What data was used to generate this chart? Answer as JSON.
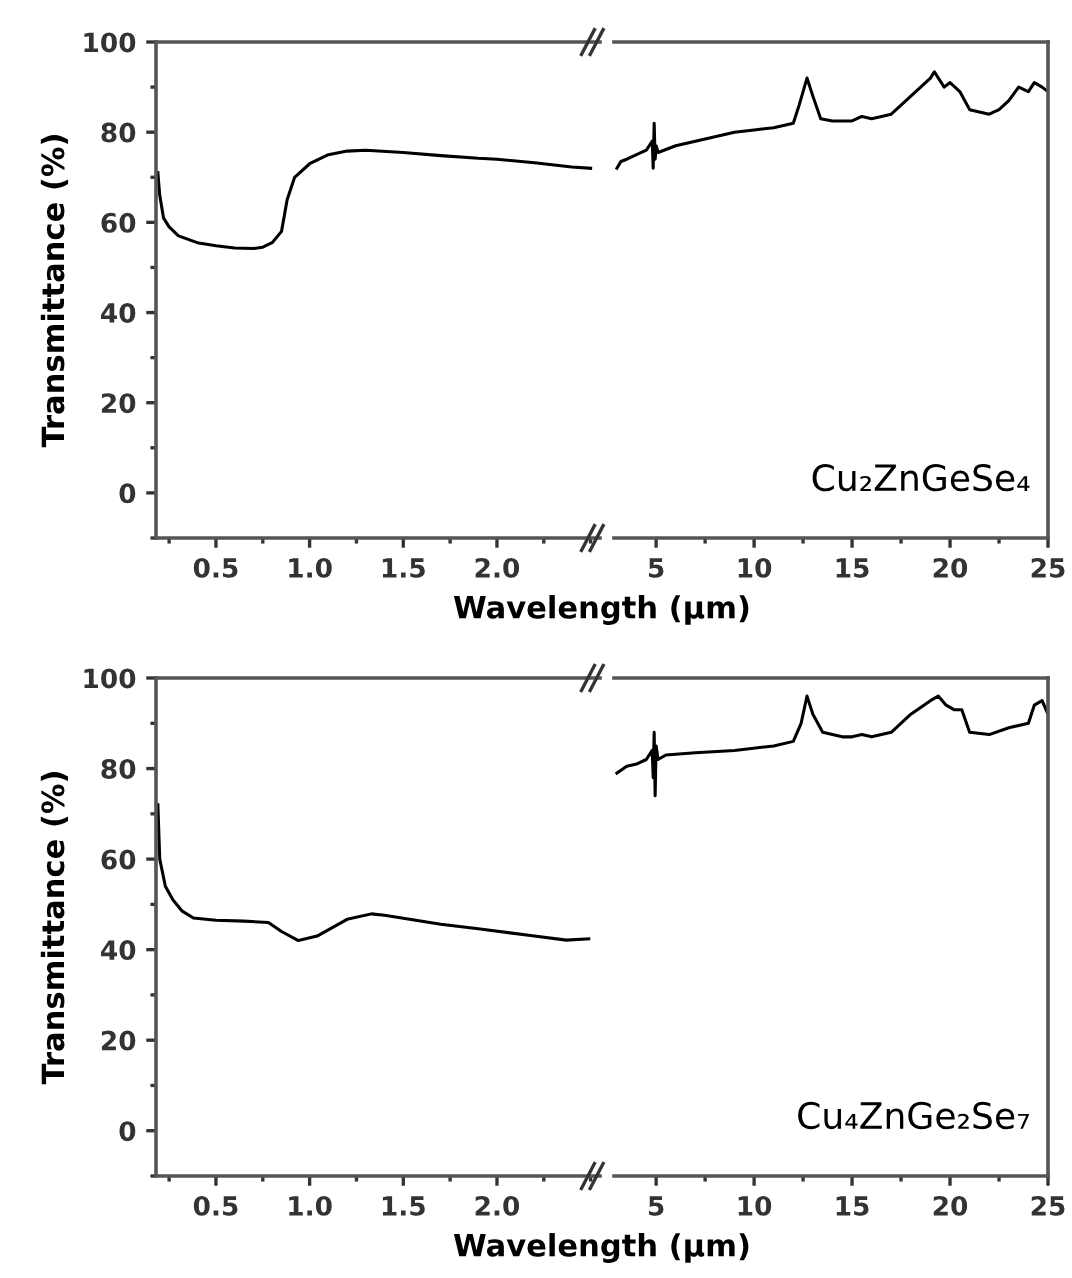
{
  "chart_data": [
    {
      "type": "line",
      "xlabel": "Wavelength (µm)",
      "ylabel": "Transmittance (%)",
      "xlim": [
        0.18,
        2.55
      ],
      "ylim": [
        -10,
        100
      ],
      "xticks": [
        {
          "value": 0.5,
          "label": "0.5"
        },
        {
          "value": 1.0,
          "label": "1.0"
        },
        {
          "value": 1.5,
          "label": "1.5"
        },
        {
          "value": 2.0,
          "label": "2.0"
        }
      ],
      "yticks": [
        0,
        20,
        40,
        60,
        80,
        100
      ],
      "grid": false,
      "legend": false,
      "series": [
        {
          "color": "#000000",
          "x": [
            0.19,
            0.2,
            0.22,
            0.25,
            0.3,
            0.4,
            0.5,
            0.6,
            0.7,
            0.75,
            0.8,
            0.85,
            0.88,
            0.92,
            1.0,
            1.1,
            1.2,
            1.3,
            1.5,
            1.7,
            1.9,
            2.0,
            2.2,
            2.4,
            2.5
          ],
          "values": [
            71,
            66,
            61,
            59,
            57,
            55.5,
            54.8,
            54.3,
            54.2,
            54.5,
            55.5,
            58,
            65,
            70,
            73,
            75,
            75.8,
            76,
            75.5,
            74.8,
            74.2,
            74,
            73.2,
            72.3,
            72
          ]
        }
      ]
    },
    {
      "type": "line",
      "xlim": [
        2.85,
        25
      ],
      "ylim": [
        -10,
        100
      ],
      "xticks": [
        5,
        10,
        15,
        20,
        25
      ],
      "yticks": [
        0,
        20,
        40,
        60,
        80,
        100
      ],
      "tick_labels": "x",
      "grid": false,
      "legend": false,
      "annotations": [
        "Cu₂ZnGeSe₄"
      ],
      "series": [
        {
          "color": "#000000",
          "x": [
            3.0,
            3.2,
            3.5,
            4.0,
            4.5,
            4.8,
            4.85,
            4.9,
            4.95,
            5.0,
            5.1,
            6,
            7,
            8,
            9,
            10,
            11,
            12,
            12.3,
            12.7,
            13.0,
            13.4,
            14,
            15,
            15.5,
            16,
            17,
            18,
            19,
            19.2,
            19.7,
            20,
            20.5,
            21,
            22,
            22.5,
            23,
            23.5,
            24,
            24.3,
            24.7,
            25
          ],
          "values": [
            72,
            73.5,
            74,
            75,
            76,
            78,
            72,
            82,
            74,
            77,
            75.5,
            77,
            78,
            79,
            80,
            80.5,
            81,
            82,
            86,
            92,
            88,
            83,
            82.5,
            82.5,
            83.5,
            83,
            84,
            88,
            92,
            93.4,
            90,
            91,
            89,
            85,
            84,
            85,
            87,
            90,
            89,
            91,
            90,
            89
          ]
        }
      ]
    },
    {
      "type": "line",
      "xlabel": "Wavelength (µm)",
      "ylabel": "Transmittance (%)",
      "xlim": [
        0.18,
        2.55
      ],
      "ylim": [
        -10,
        100
      ],
      "xticks": [
        {
          "value": 0.5,
          "label": "0.5"
        },
        {
          "value": 1.0,
          "label": "1.0"
        },
        {
          "value": 1.5,
          "label": "1.5"
        },
        {
          "value": 2.0,
          "label": "2.0"
        }
      ],
      "yticks": [
        0,
        20,
        40,
        60,
        80,
        100
      ],
      "grid": false,
      "legend": false,
      "series": [
        {
          "color": "#000000",
          "x": [
            0.19,
            0.2,
            0.23,
            0.27,
            0.32,
            0.38,
            0.5,
            0.65,
            0.78,
            0.85,
            0.94,
            1.04,
            1.2,
            1.33,
            1.4,
            1.7,
            1.9,
            2.2,
            2.37,
            2.49
          ],
          "values": [
            72,
            60,
            54,
            51,
            48.5,
            47,
            46.5,
            46.3,
            46,
            44,
            42,
            43,
            46.7,
            47.9,
            47.6,
            45.6,
            44.6,
            43,
            42.1,
            42.4
          ]
        }
      ]
    },
    {
      "type": "line",
      "xlim": [
        2.85,
        25
      ],
      "ylim": [
        -10,
        100
      ],
      "xticks": [
        5,
        10,
        15,
        20,
        25
      ],
      "yticks": [
        0,
        20,
        40,
        60,
        80,
        100
      ],
      "tick_labels": "x",
      "grid": false,
      "legend": false,
      "annotations": [
        "Cu₄ZnGe₂Se₇"
      ],
      "series": [
        {
          "color": "#000000",
          "x": [
            3.0,
            3.5,
            4.0,
            4.5,
            4.8,
            4.85,
            4.9,
            4.95,
            5.0,
            5.1,
            5.5,
            7,
            9,
            11,
            12,
            12.4,
            12.7,
            13.0,
            13.5,
            14.5,
            15,
            15.5,
            16,
            17,
            18,
            19,
            19.4,
            19.8,
            20.2,
            20.6,
            21,
            22,
            23,
            24,
            24.3,
            24.7,
            25
          ],
          "values": [
            79,
            80.5,
            81,
            82,
            84,
            78,
            88,
            74,
            85,
            82,
            83,
            83.5,
            84,
            85,
            86,
            90,
            96,
            92,
            88,
            87,
            87,
            87.5,
            87,
            88,
            92,
            95,
            96,
            94,
            93,
            93,
            88,
            87.5,
            89,
            90,
            94,
            95,
            92
          ]
        }
      ]
    }
  ]
}
